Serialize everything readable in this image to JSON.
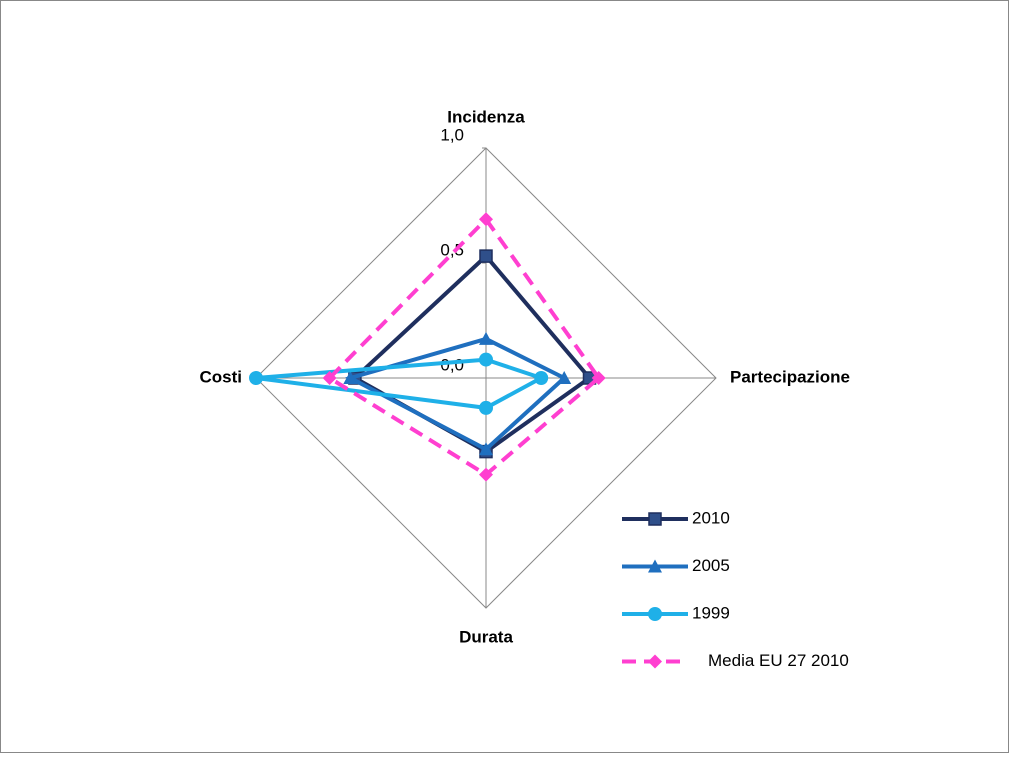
{
  "chart_data": {
    "type": "radar",
    "categories": [
      "Incidenza",
      "Partecipazione",
      "Durata",
      "Costi"
    ],
    "ylim": [
      0,
      1
    ],
    "yticks": [
      {
        "value": 0,
        "label": "0,0"
      },
      {
        "value": 0.5,
        "label": "0,5"
      },
      {
        "value": 1,
        "label": "1,0"
      }
    ],
    "grid": false,
    "legend": "lower right",
    "series": [
      {
        "name": "2010",
        "color": "#1f2f5e",
        "marker": "square",
        "dashed": false,
        "values": [
          0.53,
          0.45,
          0.32,
          0.57
        ]
      },
      {
        "name": "2005",
        "color": "#1f6fbf",
        "marker": "triangle",
        "dashed": false,
        "values": [
          0.17,
          0.34,
          0.31,
          0.59
        ]
      },
      {
        "name": "1999",
        "color": "#1fb0e8",
        "marker": "circle",
        "dashed": false,
        "values": [
          0.08,
          0.24,
          0.13,
          1.0
        ]
      },
      {
        "name": "Media EU 27 2010",
        "color": "#ff3fd0",
        "marker": "diamond",
        "dashed": true,
        "values": [
          0.69,
          0.49,
          0.42,
          0.68
        ]
      }
    ]
  }
}
